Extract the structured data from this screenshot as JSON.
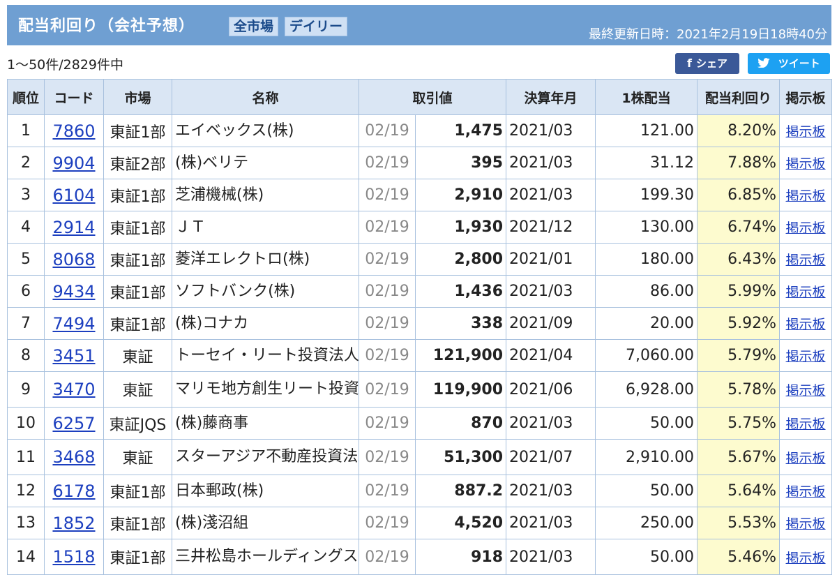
{
  "header": {
    "title": "配当利回り（会社予想）",
    "tag_market": "全市場",
    "tag_daily": "デイリー",
    "updated": "最終更新日時：2021年2月19日18時40分"
  },
  "count": "1～50件/2829件中",
  "share": {
    "facebook_label": "シェア",
    "facebook_icon": "f",
    "twitter_label": "ツイート",
    "twitter_icon": "bird-icon"
  },
  "table": {
    "headers": {
      "rank": "順位",
      "code": "コード",
      "market": "市場",
      "name": "名称",
      "price": "取引値",
      "period": "決算年月",
      "dividend": "1株配当",
      "yield": "配当利回り",
      "board": "掲示板"
    },
    "rows": [
      {
        "rank": "1",
        "code": "7860",
        "market": "東証1部",
        "name": "エイベックス(株)",
        "date": "02/19",
        "price": "1,475",
        "period": "2021/03",
        "dividend": "121.00",
        "yield": "8.20%",
        "board": "掲示板"
      },
      {
        "rank": "2",
        "code": "9904",
        "market": "東証2部",
        "name": "(株)ベリテ",
        "date": "02/19",
        "price": "395",
        "period": "2021/03",
        "dividend": "31.12",
        "yield": "7.88%",
        "board": "掲示板"
      },
      {
        "rank": "3",
        "code": "6104",
        "market": "東証1部",
        "name": "芝浦機械(株)",
        "date": "02/19",
        "price": "2,910",
        "period": "2021/03",
        "dividend": "199.30",
        "yield": "6.85%",
        "board": "掲示板"
      },
      {
        "rank": "4",
        "code": "2914",
        "market": "東証1部",
        "name": "ＪＴ",
        "date": "02/19",
        "price": "1,930",
        "period": "2021/12",
        "dividend": "130.00",
        "yield": "6.74%",
        "board": "掲示板"
      },
      {
        "rank": "5",
        "code": "8068",
        "market": "東証1部",
        "name": "菱洋エレクトロ(株)",
        "date": "02/19",
        "price": "2,800",
        "period": "2021/01",
        "dividend": "180.00",
        "yield": "6.43%",
        "board": "掲示板"
      },
      {
        "rank": "6",
        "code": "9434",
        "market": "東証1部",
        "name": "ソフトバンク(株)",
        "date": "02/19",
        "price": "1,436",
        "period": "2021/03",
        "dividend": "86.00",
        "yield": "5.99%",
        "board": "掲示板"
      },
      {
        "rank": "7",
        "code": "7494",
        "market": "東証1部",
        "name": "(株)コナカ",
        "date": "02/19",
        "price": "338",
        "period": "2021/09",
        "dividend": "20.00",
        "yield": "5.92%",
        "board": "掲示板"
      },
      {
        "rank": "8",
        "code": "3451",
        "market": "東証",
        "name": "トーセイ・リート投資法人",
        "date": "02/19",
        "price": "121,900",
        "period": "2021/04",
        "dividend": "7,060.00",
        "yield": "5.79%",
        "board": "掲示板"
      },
      {
        "rank": "9",
        "code": "3470",
        "market": "東証",
        "name": "マリモ地方創生リート投資法人",
        "date": "02/19",
        "price": "119,900",
        "period": "2021/06",
        "dividend": "6,928.00",
        "yield": "5.78%",
        "board": "掲示板"
      },
      {
        "rank": "10",
        "code": "6257",
        "market": "東証JQS",
        "name": "(株)藤商事",
        "date": "02/19",
        "price": "870",
        "period": "2021/03",
        "dividend": "50.00",
        "yield": "5.75%",
        "board": "掲示板"
      },
      {
        "rank": "11",
        "code": "3468",
        "market": "東証",
        "name": "スターアジア不動産投資法人",
        "date": "02/19",
        "price": "51,300",
        "period": "2021/07",
        "dividend": "2,910.00",
        "yield": "5.67%",
        "board": "掲示板"
      },
      {
        "rank": "12",
        "code": "6178",
        "market": "東証1部",
        "name": "日本郵政(株)",
        "date": "02/19",
        "price": "887.2",
        "period": "2021/03",
        "dividend": "50.00",
        "yield": "5.64%",
        "board": "掲示板"
      },
      {
        "rank": "13",
        "code": "1852",
        "market": "東証1部",
        "name": "(株)淺沼組",
        "date": "02/19",
        "price": "4,520",
        "period": "2021/03",
        "dividend": "250.00",
        "yield": "5.53%",
        "board": "掲示板"
      },
      {
        "rank": "14",
        "code": "1518",
        "market": "東証1部",
        "name": "三井松島ホールディングス(株)",
        "date": "02/19",
        "price": "918",
        "period": "2021/03",
        "dividend": "50.00",
        "yield": "5.46%",
        "board": "掲示板"
      }
    ]
  },
  "colors": {
    "header_bg": "#6f9fd2",
    "th_bg": "#dae6f4",
    "yield_bg": "#fdfbcf",
    "link": "#1c3fbf",
    "facebook": "#3b5998",
    "twitter": "#1da1f2"
  }
}
